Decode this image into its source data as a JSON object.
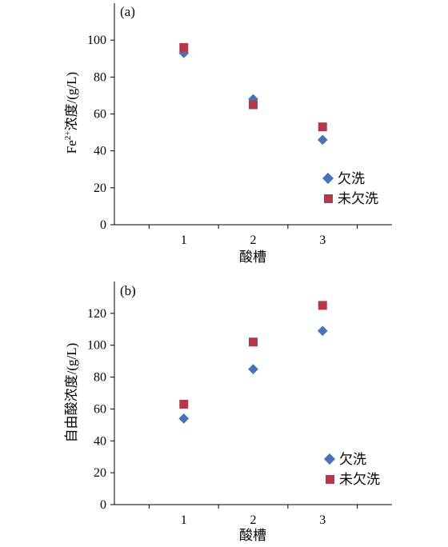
{
  "colors": {
    "series1": "#4a72b8",
    "series2": "#b3394a",
    "axis": "#000000"
  },
  "chart_data": [
    {
      "type": "scatter",
      "panel_label": "(a)",
      "title": "",
      "xlabel": "酸槽",
      "ylabel_main": "Fe",
      "ylabel_sup": "2+",
      "ylabel_rest": "浓度/(g/L)",
      "x": [
        1,
        2,
        3
      ],
      "xlim": [
        0,
        4
      ],
      "ylim": [
        0,
        120
      ],
      "yticks": [
        0,
        20,
        40,
        60,
        80,
        100
      ],
      "legend_position": "lower-right",
      "series": [
        {
          "name": "欠洗",
          "marker": "diamond",
          "values": [
            93,
            68,
            46
          ]
        },
        {
          "name": "未欠洗",
          "marker": "square",
          "values": [
            96,
            65,
            53
          ]
        }
      ]
    },
    {
      "type": "scatter",
      "panel_label": "(b)",
      "title": "",
      "xlabel": "酸槽",
      "ylabel": "自由酸浓度/(g/L)",
      "x": [
        1,
        2,
        3
      ],
      "xlim": [
        0,
        4
      ],
      "ylim": [
        0,
        140
      ],
      "yticks": [
        0,
        20,
        40,
        60,
        80,
        100,
        120
      ],
      "legend_position": "lower-right",
      "series": [
        {
          "name": "欠洗",
          "marker": "diamond",
          "values": [
            54,
            85,
            109
          ]
        },
        {
          "name": "未欠洗",
          "marker": "square",
          "values": [
            63,
            102,
            125
          ]
        }
      ]
    }
  ]
}
